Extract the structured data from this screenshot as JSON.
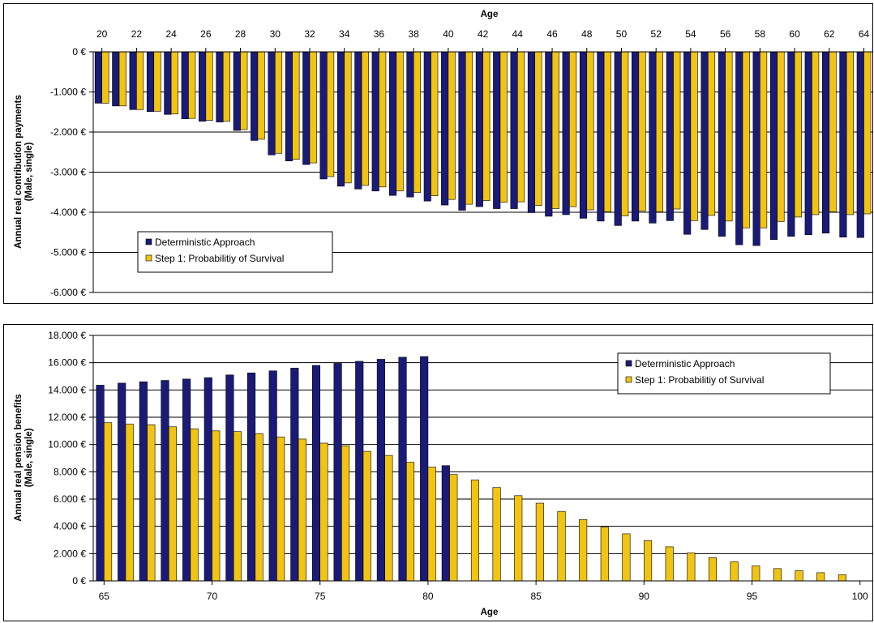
{
  "chart_data": [
    {
      "type": "bar",
      "xlabel": "Age",
      "ylabel": "Annual real contribution payments (Male, single)",
      "ylabel_lines": [
        "Annual real contribution payments",
        "(Male, single)"
      ],
      "ylim": [
        -6000,
        0
      ],
      "yticks": [
        0,
        -1000,
        -2000,
        -3000,
        -4000,
        -5000,
        -6000
      ],
      "ytick_labels": [
        "0 €",
        "-1.000 €",
        "-2.000 €",
        "-3.000 €",
        "-4.000 €",
        "-5.000 €",
        "-6.000 €"
      ],
      "xtick_labels": [
        "20",
        "22",
        "24",
        "26",
        "28",
        "30",
        "32",
        "34",
        "36",
        "38",
        "40",
        "42",
        "44",
        "46",
        "48",
        "50",
        "52",
        "54",
        "56",
        "58",
        "60",
        "62",
        "64"
      ],
      "x_axis_position": "top",
      "grid": true,
      "legend_position": "bottom-left",
      "categories": [
        "20",
        "21",
        "22",
        "23",
        "24",
        "25",
        "26",
        "27",
        "28",
        "29",
        "30",
        "31",
        "32",
        "33",
        "34",
        "35",
        "36",
        "37",
        "38",
        "39",
        "40",
        "41",
        "42",
        "43",
        "44",
        "45",
        "46",
        "47",
        "48",
        "49",
        "50",
        "51",
        "52",
        "53",
        "54",
        "55",
        "56",
        "57",
        "58",
        "59",
        "60",
        "61",
        "62",
        "63",
        "64"
      ],
      "series": [
        {
          "name": "Deterministic Approach",
          "color": "#1a1a78",
          "values": [
            -1280,
            -1350,
            -1440,
            -1490,
            -1560,
            -1670,
            -1730,
            -1750,
            -1960,
            -2210,
            -2570,
            -2720,
            -2810,
            -3170,
            -3350,
            -3420,
            -3470,
            -3580,
            -3620,
            -3720,
            -3820,
            -3950,
            -3860,
            -3910,
            -3910,
            -4010,
            -4100,
            -4060,
            -4150,
            -4220,
            -4330,
            -4220,
            -4270,
            -4210,
            -4550,
            -4430,
            -4600,
            -4810,
            -4830,
            -4680,
            -4600,
            -4560,
            -4520,
            -4620,
            -4630
          ]
        },
        {
          "name": "Step 1: Probabilitiy of Survival",
          "color": "#f2c412",
          "values": [
            -1280,
            -1350,
            -1440,
            -1480,
            -1550,
            -1660,
            -1710,
            -1730,
            -1940,
            -2180,
            -2530,
            -2680,
            -2770,
            -3110,
            -3270,
            -3330,
            -3370,
            -3470,
            -3510,
            -3590,
            -3680,
            -3800,
            -3710,
            -3750,
            -3740,
            -3830,
            -3910,
            -3860,
            -3940,
            -3990,
            -4090,
            -3970,
            -3990,
            -3920,
            -4210,
            -4080,
            -4220,
            -4390,
            -4390,
            -4230,
            -4120,
            -4060,
            -3990,
            -4060,
            -4040
          ]
        }
      ]
    },
    {
      "type": "bar",
      "xlabel": "Age",
      "ylabel": "Annual real pension benefits (Male, single)",
      "ylabel_lines": [
        "Annual real pension benefits",
        "(Male, single)"
      ],
      "ylim": [
        0,
        18000
      ],
      "yticks": [
        0,
        2000,
        4000,
        6000,
        8000,
        10000,
        12000,
        14000,
        16000,
        18000
      ],
      "ytick_labels": [
        "0 €",
        "2.000 €",
        "4.000 €",
        "6.000 €",
        "8.000 €",
        "10.000 €",
        "12.000 €",
        "14.000 €",
        "16.000 €",
        "18.000 €"
      ],
      "xtick_labels": [
        "65",
        "70",
        "75",
        "80",
        "85",
        "90",
        "95",
        "100"
      ],
      "x_axis_position": "bottom",
      "grid": true,
      "legend_position": "top-right",
      "categories": [
        "65",
        "66",
        "67",
        "68",
        "69",
        "70",
        "71",
        "72",
        "73",
        "74",
        "75",
        "76",
        "77",
        "78",
        "79",
        "80",
        "81",
        "82",
        "83",
        "84",
        "85",
        "86",
        "87",
        "88",
        "89",
        "90",
        "91",
        "92",
        "93",
        "94",
        "95",
        "96",
        "97",
        "98",
        "99"
      ],
      "series": [
        {
          "name": "Deterministic Approach",
          "color": "#1a1a78",
          "values": [
            14350,
            14500,
            14600,
            14700,
            14800,
            14900,
            15100,
            15250,
            15400,
            15600,
            15800,
            15950,
            16100,
            16250,
            16400,
            16450,
            8450,
            null,
            null,
            null,
            null,
            null,
            null,
            null,
            null,
            null,
            null,
            null,
            null,
            null,
            null,
            null,
            null,
            null,
            null
          ]
        },
        {
          "name": "Step 1: Probabilitiy of Survival",
          "color": "#f2c412",
          "values": [
            11600,
            11500,
            11450,
            11300,
            11150,
            11000,
            10950,
            10800,
            10550,
            10400,
            10100,
            9900,
            9500,
            9200,
            8700,
            8350,
            7800,
            7400,
            6850,
            6250,
            5700,
            5100,
            4500,
            3950,
            3450,
            2950,
            2500,
            2050,
            1700,
            1400,
            1100,
            900,
            750,
            600,
            450
          ]
        }
      ]
    }
  ]
}
